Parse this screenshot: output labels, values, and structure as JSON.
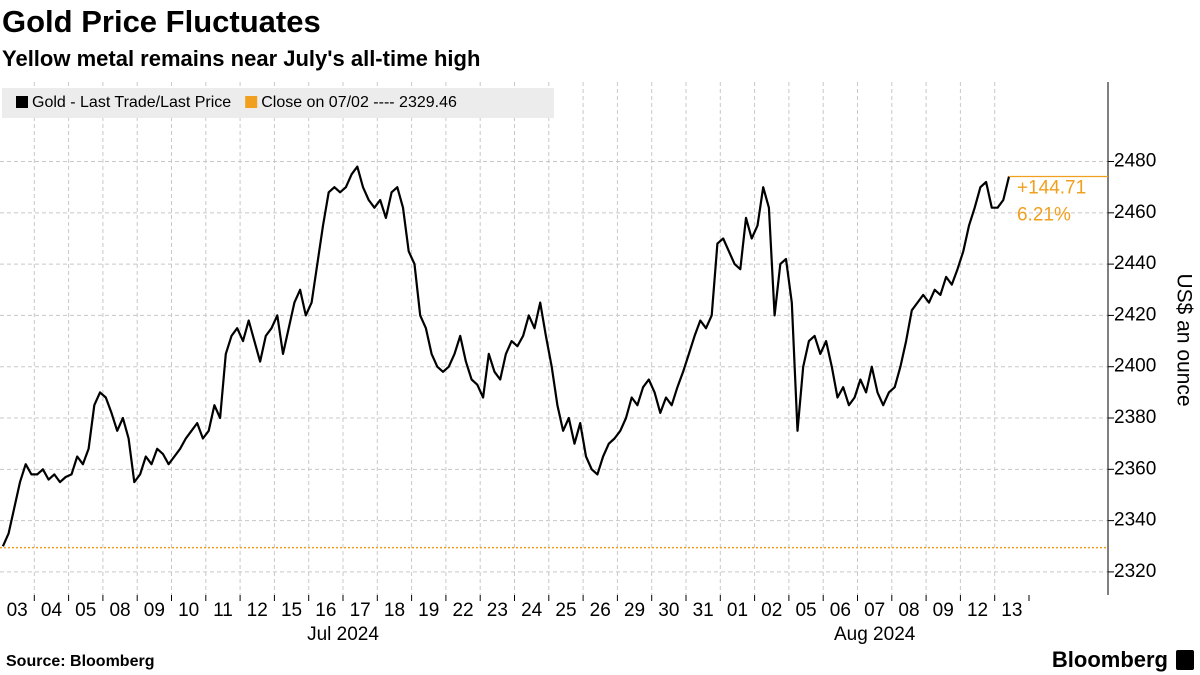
{
  "chart_data": {
    "type": "line",
    "title": "Gold Price Fluctuates",
    "subtitle": "Yellow metal remains near July's all-time high",
    "y_axis_label": "US$ an ounce",
    "source": "Source: Bloomberg",
    "brand": "Bloomberg",
    "categories": [
      "03",
      "04",
      "05",
      "08",
      "09",
      "10",
      "11",
      "12",
      "15",
      "16",
      "17",
      "18",
      "19",
      "22",
      "23",
      "24",
      "25",
      "26",
      "29",
      "30",
      "31",
      "01",
      "02",
      "05",
      "06",
      "07",
      "08",
      "09",
      "12",
      "13"
    ],
    "month_labels": [
      "Jul 2024",
      "Aug 2024"
    ],
    "series": [
      {
        "name": "Gold - Last Trade/Last Price",
        "color": "#000000",
        "values": [
          [
            2330,
            2335,
            2345,
            2355,
            2362,
            2358
          ],
          [
            2358,
            2360,
            2356,
            2358,
            2355,
            2357
          ],
          [
            2358,
            2365,
            2362,
            2368,
            2385,
            2390
          ],
          [
            2388,
            2382,
            2375,
            2380,
            2372,
            2355
          ],
          [
            2358,
            2365,
            2362,
            2368,
            2366,
            2362
          ],
          [
            2365,
            2368,
            2372,
            2375,
            2378,
            2372
          ],
          [
            2375,
            2385,
            2380,
            2405,
            2412,
            2415
          ],
          [
            2410,
            2418,
            2410,
            2402,
            2412,
            2415
          ],
          [
            2420,
            2405,
            2415,
            2425,
            2430,
            2420
          ],
          [
            2425,
            2440,
            2455,
            2468,
            2470,
            2468
          ],
          [
            2470,
            2475,
            2478,
            2470,
            2465,
            2462
          ],
          [
            2465,
            2458,
            2468,
            2470,
            2462,
            2445
          ],
          [
            2440,
            2420,
            2415,
            2405,
            2400,
            2398
          ],
          [
            2400,
            2405,
            2412,
            2402,
            2395,
            2393
          ],
          [
            2388,
            2405,
            2398,
            2395,
            2405,
            2410
          ],
          [
            2408,
            2412,
            2420,
            2415,
            2425,
            2412
          ],
          [
            2400,
            2385,
            2375,
            2380,
            2370,
            2378
          ],
          [
            2365,
            2360,
            2358,
            2365,
            2370,
            2372
          ],
          [
            2375,
            2380,
            2388,
            2385,
            2392,
            2395
          ],
          [
            2390,
            2382,
            2388,
            2385,
            2392,
            2398
          ],
          [
            2405,
            2412,
            2418,
            2415,
            2420,
            2448
          ],
          [
            2450,
            2445,
            2440,
            2438,
            2458,
            2450
          ],
          [
            2455,
            2470,
            2462,
            2420,
            2440,
            2442
          ],
          [
            2425,
            2375,
            2400,
            2410,
            2412,
            2405
          ],
          [
            2410,
            2400,
            2388,
            2392,
            2385,
            2388
          ],
          [
            2395,
            2390,
            2400,
            2390,
            2385,
            2390
          ],
          [
            2392,
            2400,
            2410,
            2422,
            2425,
            2428
          ],
          [
            2425,
            2430,
            2428,
            2435,
            2432,
            2438
          ],
          [
            2445,
            2455,
            2462,
            2470,
            2472,
            2462
          ],
          [
            2462,
            2465,
            2474.17
          ]
        ]
      }
    ],
    "reference": {
      "name": "Close on 07/02 ---- 2329.46",
      "value": 2329.46,
      "color": "#f0a01e"
    },
    "annotations": [
      "+144.71",
      "6.21%"
    ],
    "annotation_color": "#f0a01e",
    "ylim": [
      2311,
      2511
    ],
    "yticks": [
      2320,
      2340,
      2360,
      2380,
      2400,
      2420,
      2440,
      2460,
      2480
    ],
    "grid": true
  }
}
